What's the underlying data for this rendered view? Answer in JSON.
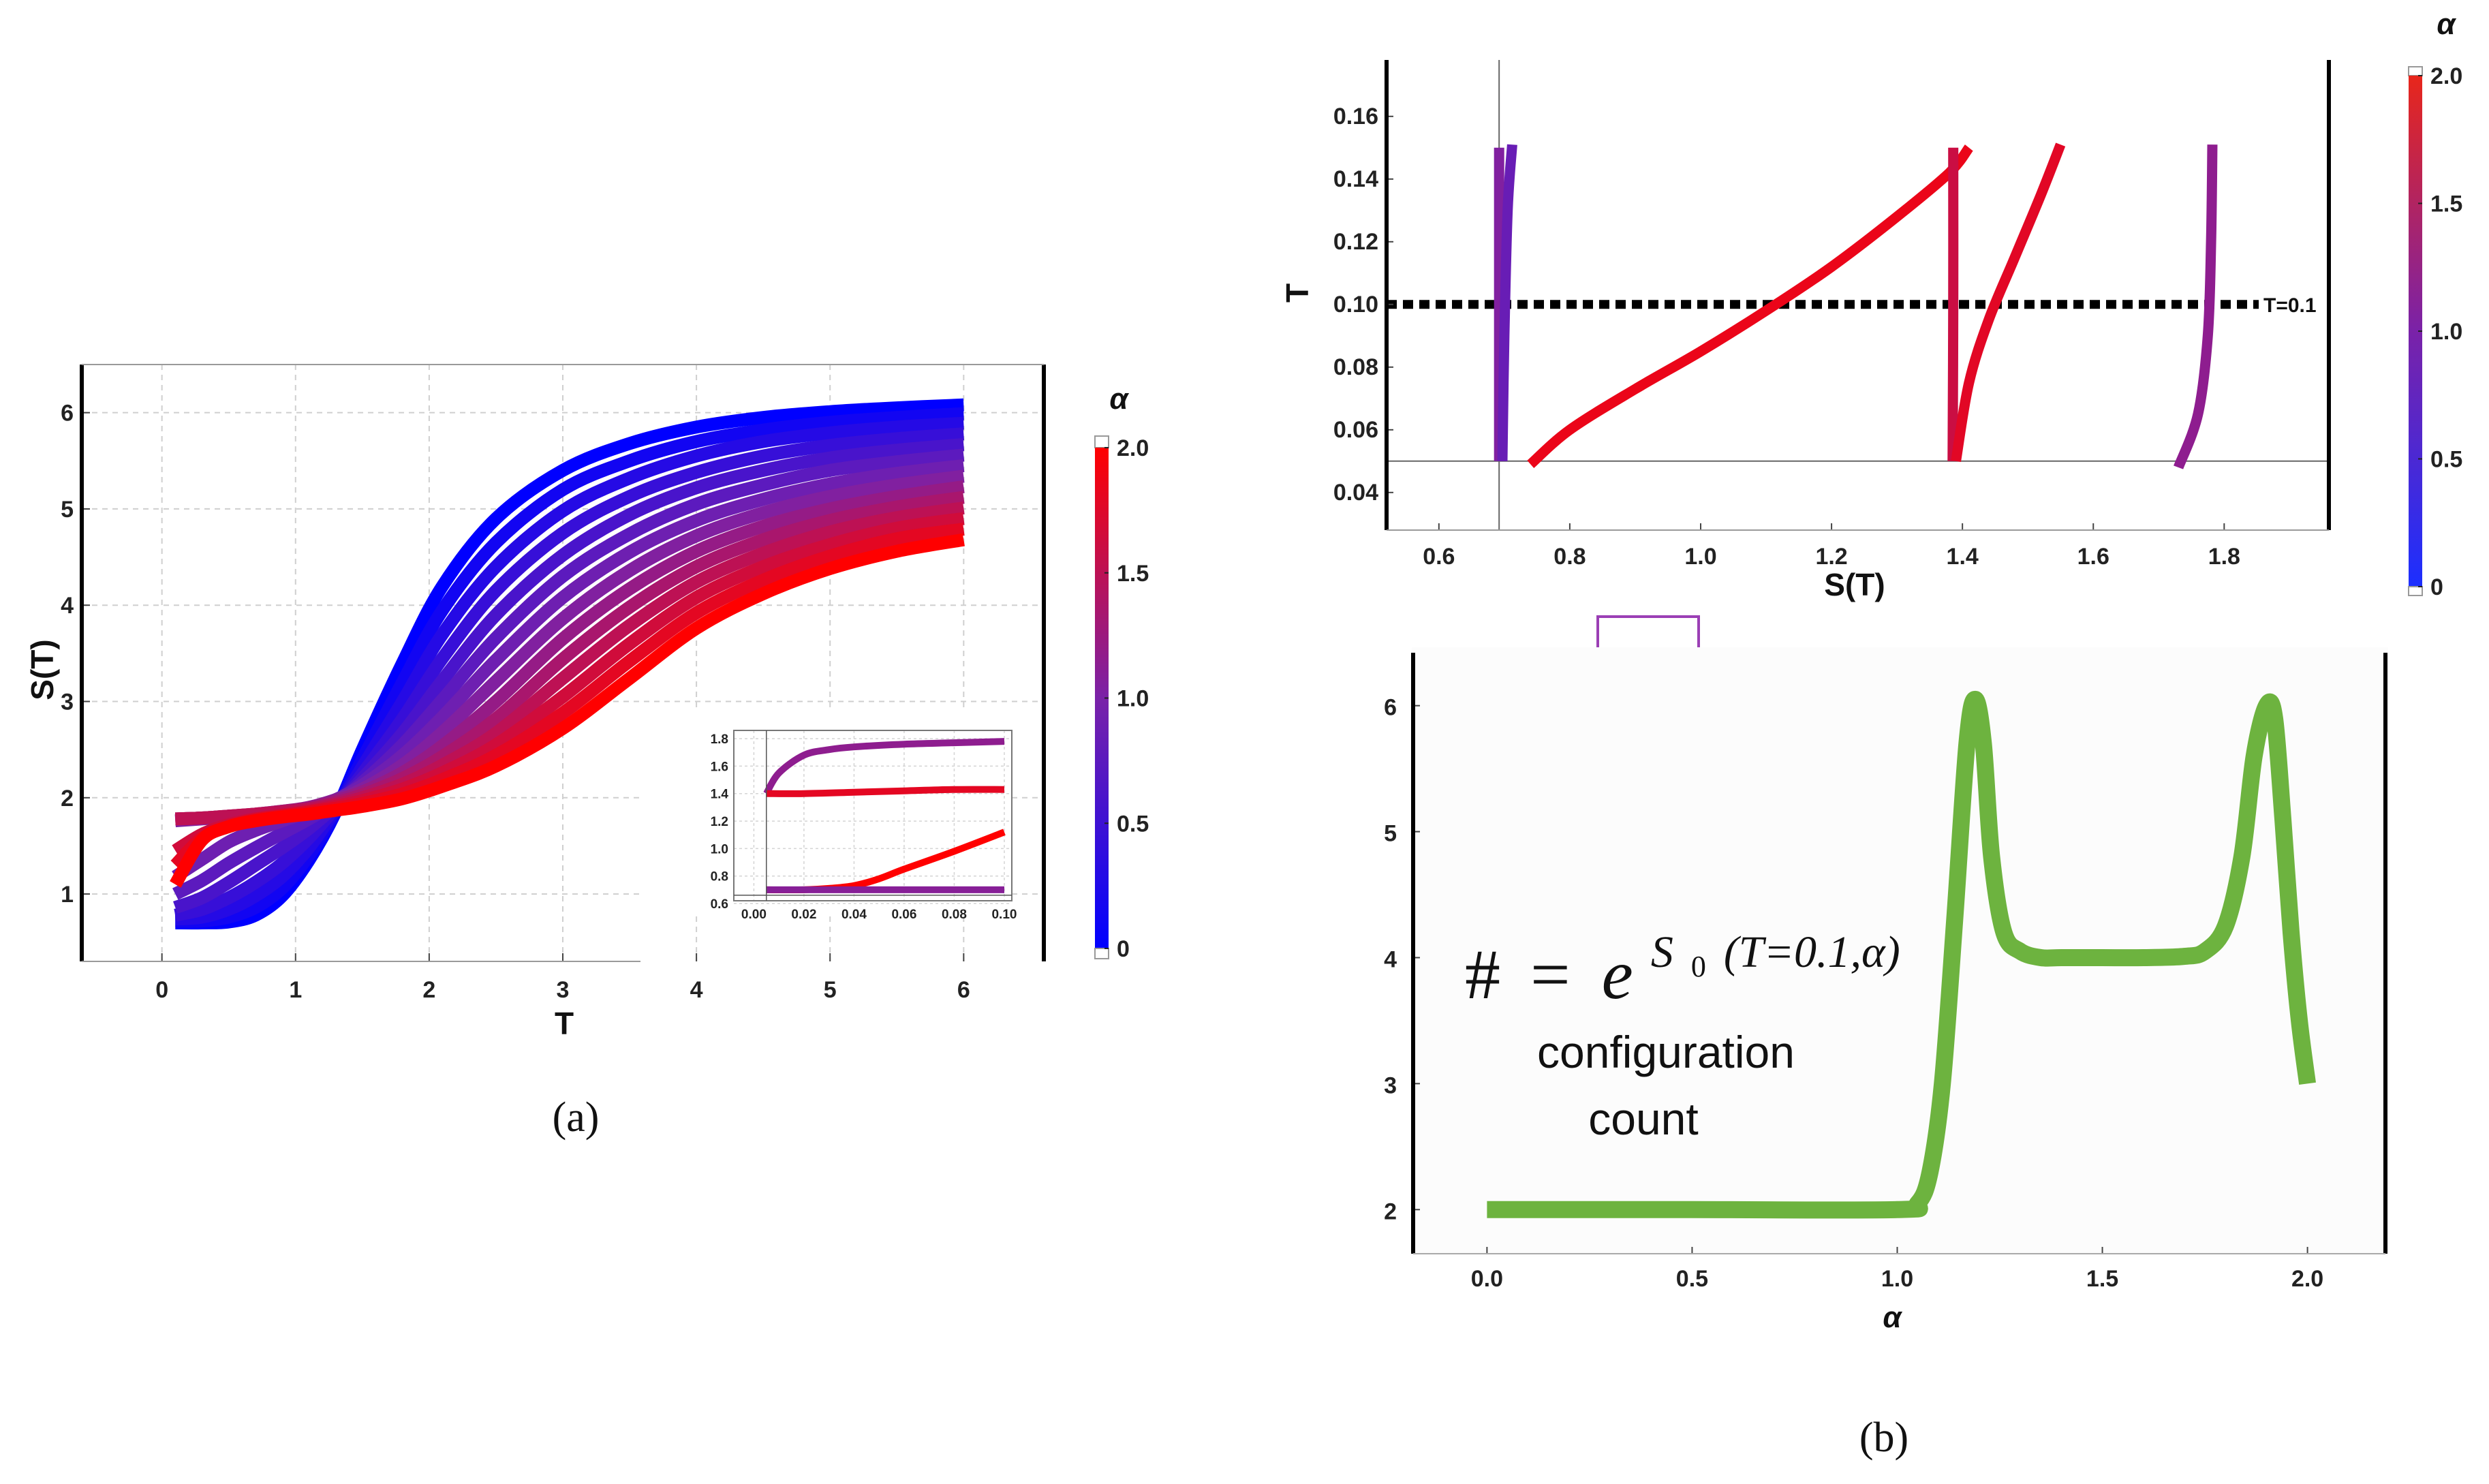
{
  "colors": {
    "alpha_low": "#0000ff",
    "alpha_mid": "#7a22a8",
    "alpha_high": "#ff0000",
    "count_line": "#6db33f",
    "arrow": "#9b3fb5",
    "dashed_line": "#000000"
  },
  "captions": {
    "a": "(a)",
    "b": "(b)"
  },
  "formula": {
    "lhs": "#",
    "eq": "=",
    "base": "e",
    "exponent": "S",
    "sub": "0",
    "args": "(T=0.1,α)"
  },
  "annotation": {
    "line1": "configuration",
    "line2": "count"
  },
  "chart_data": [
    {
      "id": "a-main",
      "type": "line",
      "title": "",
      "xlabel": "T",
      "ylabel": "S(T)",
      "xlim": [
        -0.6,
        6.6
      ],
      "ylim": [
        0.3,
        6.5
      ],
      "xticks": [
        0,
        1,
        2,
        3,
        4,
        5,
        6
      ],
      "yticks": [
        1,
        2,
        3,
        4,
        5,
        6
      ],
      "color_by": "α",
      "series": [
        {
          "name": "α=0.0",
          "alpha": 0.0,
          "x": [
            0.1,
            0.3,
            0.5,
            0.7,
            0.9,
            1.1,
            1.3,
            1.5,
            1.8,
            2.1,
            2.5,
            3.0,
            3.5,
            4.0,
            4.5,
            5.0,
            5.5,
            6.0
          ],
          "y": [
            0.7,
            0.7,
            0.71,
            0.78,
            0.98,
            1.35,
            1.85,
            2.5,
            3.4,
            4.2,
            4.9,
            5.4,
            5.68,
            5.85,
            5.95,
            6.01,
            6.05,
            6.08
          ]
        },
        {
          "name": "α=0.15",
          "alpha": 0.15,
          "x": [
            0.1,
            0.3,
            0.5,
            0.7,
            0.9,
            1.1,
            1.3,
            1.5,
            1.8,
            2.1,
            2.5,
            3.0,
            3.5,
            4.0,
            4.5,
            5.0,
            5.5,
            6.0
          ],
          "y": [
            0.72,
            0.72,
            0.76,
            0.86,
            1.06,
            1.4,
            1.86,
            2.4,
            3.2,
            3.95,
            4.65,
            5.2,
            5.5,
            5.7,
            5.82,
            5.9,
            5.95,
            5.99
          ]
        },
        {
          "name": "α=0.3",
          "alpha": 0.3,
          "x": [
            0.1,
            0.3,
            0.5,
            0.7,
            0.9,
            1.1,
            1.3,
            1.5,
            1.8,
            2.1,
            2.5,
            3.0,
            3.5,
            4.0,
            4.5,
            5.0,
            5.5,
            6.0
          ],
          "y": [
            0.74,
            0.76,
            0.84,
            0.98,
            1.18,
            1.48,
            1.88,
            2.32,
            3.0,
            3.7,
            4.4,
            4.98,
            5.32,
            5.55,
            5.7,
            5.79,
            5.85,
            5.89
          ]
        },
        {
          "name": "α=0.45",
          "alpha": 0.45,
          "x": [
            0.1,
            0.3,
            0.5,
            0.7,
            0.9,
            1.1,
            1.3,
            1.5,
            1.8,
            2.1,
            2.5,
            3.0,
            3.5,
            4.0,
            4.5,
            5.0,
            5.5,
            6.0
          ],
          "y": [
            0.78,
            0.84,
            0.96,
            1.12,
            1.32,
            1.58,
            1.9,
            2.25,
            2.82,
            3.45,
            4.15,
            4.75,
            5.13,
            5.38,
            5.55,
            5.66,
            5.73,
            5.78
          ]
        },
        {
          "name": "α=0.6",
          "alpha": 0.6,
          "x": [
            0.1,
            0.3,
            0.5,
            0.7,
            0.9,
            1.1,
            1.3,
            1.5,
            1.8,
            2.1,
            2.5,
            3.0,
            3.5,
            4.0,
            4.5,
            5.0,
            5.5,
            6.0
          ],
          "y": [
            0.86,
            0.96,
            1.12,
            1.3,
            1.48,
            1.68,
            1.92,
            2.2,
            2.67,
            3.22,
            3.9,
            4.52,
            4.94,
            5.22,
            5.4,
            5.53,
            5.61,
            5.67
          ]
        },
        {
          "name": "α=0.75",
          "alpha": 0.75,
          "x": [
            0.1,
            0.3,
            0.5,
            0.7,
            0.9,
            1.1,
            1.3,
            1.5,
            1.8,
            2.1,
            2.5,
            3.0,
            3.5,
            4.0,
            4.5,
            5.0,
            5.5,
            6.0
          ],
          "y": [
            1.0,
            1.14,
            1.32,
            1.48,
            1.63,
            1.78,
            1.95,
            2.16,
            2.55,
            3.02,
            3.66,
            4.3,
            4.74,
            5.05,
            5.25,
            5.4,
            5.49,
            5.56
          ]
        },
        {
          "name": "α=0.9",
          "alpha": 0.9,
          "x": [
            0.1,
            0.3,
            0.5,
            0.7,
            0.9,
            1.1,
            1.3,
            1.5,
            1.8,
            2.1,
            2.5,
            3.0,
            3.5,
            4.0,
            4.5,
            5.0,
            5.5,
            6.0
          ],
          "y": [
            1.18,
            1.36,
            1.54,
            1.66,
            1.76,
            1.86,
            1.98,
            2.13,
            2.44,
            2.84,
            3.43,
            4.08,
            4.55,
            4.88,
            5.1,
            5.26,
            5.37,
            5.45
          ]
        },
        {
          "name": "α=1.05",
          "alpha": 1.05,
          "x": [
            0.1,
            0.3,
            0.5,
            0.7,
            0.9,
            1.1,
            1.3,
            1.5,
            1.8,
            2.1,
            2.5,
            3.0,
            3.5,
            4.0,
            4.5,
            5.0,
            5.5,
            6.0
          ],
          "y": [
            1.76,
            1.78,
            1.8,
            1.82,
            1.85,
            1.9,
            1.98,
            2.09,
            2.34,
            2.68,
            3.21,
            3.86,
            4.36,
            4.72,
            4.96,
            5.13,
            5.25,
            5.34
          ]
        },
        {
          "name": "α=1.2",
          "alpha": 1.2,
          "x": [
            0.1,
            0.3,
            0.5,
            0.7,
            0.9,
            1.1,
            1.3,
            1.5,
            1.8,
            2.1,
            2.5,
            3.0,
            3.5,
            4.0,
            4.5,
            5.0,
            5.5,
            6.0
          ],
          "y": [
            1.78,
            1.79,
            1.81,
            1.83,
            1.86,
            1.9,
            1.97,
            2.06,
            2.26,
            2.54,
            3.0,
            3.65,
            4.17,
            4.56,
            4.82,
            5.0,
            5.13,
            5.23
          ]
        },
        {
          "name": "α=1.35",
          "alpha": 1.35,
          "x": [
            0.1,
            0.3,
            0.5,
            0.7,
            0.9,
            1.1,
            1.3,
            1.5,
            1.8,
            2.1,
            2.5,
            3.0,
            3.5,
            4.0,
            4.5,
            5.0,
            5.5,
            6.0
          ],
          "y": [
            1.78,
            1.79,
            1.81,
            1.83,
            1.86,
            1.89,
            1.95,
            2.03,
            2.2,
            2.43,
            2.82,
            3.44,
            3.98,
            4.4,
            4.68,
            4.88,
            5.02,
            5.12
          ]
        },
        {
          "name": "α=1.5",
          "alpha": 1.5,
          "x": [
            0.1,
            0.3,
            0.5,
            0.7,
            0.9,
            1.1,
            1.3,
            1.5,
            1.8,
            2.1,
            2.5,
            3.0,
            3.5,
            4.0,
            4.5,
            5.0,
            5.5,
            6.0
          ],
          "y": [
            1.78,
            1.79,
            1.81,
            1.83,
            1.85,
            1.88,
            1.93,
            2.0,
            2.14,
            2.34,
            2.67,
            3.24,
            3.79,
            4.24,
            4.54,
            4.76,
            4.91,
            5.01
          ]
        },
        {
          "name": "α=1.65",
          "alpha": 1.65,
          "x": [
            0.1,
            0.3,
            0.5,
            0.7,
            0.9,
            1.1,
            1.3,
            1.5,
            1.8,
            2.1,
            2.5,
            3.0,
            3.5,
            4.0,
            4.5,
            5.0,
            5.5,
            6.0
          ],
          "y": [
            1.45,
            1.62,
            1.72,
            1.78,
            1.82,
            1.86,
            1.91,
            1.97,
            2.09,
            2.26,
            2.55,
            3.05,
            3.6,
            4.08,
            4.4,
            4.63,
            4.8,
            4.9
          ]
        },
        {
          "name": "α=1.8",
          "alpha": 1.8,
          "x": [
            0.1,
            0.3,
            0.5,
            0.7,
            0.9,
            1.1,
            1.3,
            1.5,
            1.8,
            2.1,
            2.5,
            3.0,
            3.5,
            4.0,
            4.5,
            5.0,
            5.5,
            6.0
          ],
          "y": [
            1.3,
            1.58,
            1.7,
            1.77,
            1.81,
            1.85,
            1.89,
            1.94,
            2.04,
            2.19,
            2.44,
            2.88,
            3.42,
            3.92,
            4.26,
            4.51,
            4.69,
            4.79
          ]
        },
        {
          "name": "α=2.0",
          "alpha": 2.0,
          "x": [
            0.1,
            0.3,
            0.5,
            0.7,
            0.9,
            1.1,
            1.3,
            1.5,
            1.8,
            2.1,
            2.5,
            3.0,
            3.5,
            4.0,
            4.5,
            5.0,
            5.5,
            6.0
          ],
          "y": [
            1.1,
            1.56,
            1.7,
            1.76,
            1.8,
            1.83,
            1.87,
            1.91,
            1.99,
            2.12,
            2.33,
            2.72,
            3.24,
            3.76,
            4.12,
            4.38,
            4.56,
            4.68
          ]
        }
      ]
    },
    {
      "id": "a-inset",
      "type": "line",
      "title": "",
      "xlabel": "",
      "ylabel": "",
      "xlim": [
        -0.008,
        0.103
      ],
      "ylim": [
        0.62,
        1.86
      ],
      "xticks": [
        "0.00",
        "0.02",
        "0.04",
        "0.06",
        "0.08",
        "0.10"
      ],
      "yticks": [
        "0.6",
        "0.8",
        "1.0",
        "1.2",
        "1.4",
        "1.6",
        "1.8"
      ],
      "series": [
        {
          "name": "upper",
          "alpha": 1.15,
          "x": [
            0.005,
            0.01,
            0.02,
            0.03,
            0.04,
            0.06,
            0.08,
            0.1
          ],
          "y": [
            1.4,
            1.55,
            1.68,
            1.72,
            1.74,
            1.76,
            1.77,
            1.78
          ]
        },
        {
          "name": "middle",
          "alpha": 1.8,
          "x": [
            0.005,
            0.02,
            0.04,
            0.06,
            0.08,
            0.1
          ],
          "y": [
            1.4,
            1.4,
            1.41,
            1.42,
            1.43,
            1.43
          ]
        },
        {
          "name": "lower-rising",
          "alpha": 2.0,
          "x": [
            0.005,
            0.02,
            0.03,
            0.04,
            0.05,
            0.06,
            0.08,
            0.1
          ],
          "y": [
            0.7,
            0.7,
            0.71,
            0.73,
            0.78,
            0.85,
            0.98,
            1.12
          ]
        },
        {
          "name": "lower-flat",
          "alpha": 1.1,
          "x": [
            0.005,
            0.02,
            0.04,
            0.06,
            0.08,
            0.1
          ],
          "y": [
            0.7,
            0.7,
            0.7,
            0.7,
            0.7,
            0.7
          ]
        }
      ]
    },
    {
      "id": "b-top",
      "type": "line",
      "title": "",
      "xlabel": "S(T)",
      "ylabel": "T",
      "xlim": [
        0.52,
        1.96
      ],
      "ylim": [
        0.028,
        0.178
      ],
      "xticks": [
        "0.6",
        "0.8",
        "1.0",
        "1.2",
        "1.4",
        "1.6",
        "1.8"
      ],
      "yticks": [
        "0.04",
        "0.06",
        "0.08",
        "0.10",
        "0.12",
        "0.14",
        "0.16"
      ],
      "reference_line": {
        "T": 0.1,
        "label": "T=0.1"
      },
      "series": [
        {
          "name": "vertical-0.69",
          "alpha": 1.05,
          "x": [
            0.692,
            0.692
          ],
          "y": [
            0.05,
            0.15
          ]
        },
        {
          "name": "near-0.69",
          "alpha": 0.85,
          "x": [
            0.697,
            0.7,
            0.705,
            0.712
          ],
          "y": [
            0.05,
            0.09,
            0.13,
            0.151
          ]
        },
        {
          "name": "rising",
          "alpha": 1.85,
          "x": [
            0.74,
            0.8,
            0.9,
            1.0,
            1.1,
            1.2,
            1.3,
            1.38,
            1.41
          ],
          "y": [
            0.049,
            0.06,
            0.073,
            0.085,
            0.098,
            0.112,
            0.128,
            0.142,
            0.15
          ]
        },
        {
          "name": "vertical-1.386",
          "alpha": 1.6,
          "x": [
            1.385,
            1.386,
            1.386
          ],
          "y": [
            0.05,
            0.1,
            0.15
          ]
        },
        {
          "name": "branch",
          "alpha": 1.78,
          "x": [
            1.39,
            1.41,
            1.44,
            1.48,
            1.52,
            1.55
          ],
          "y": [
            0.05,
            0.075,
            0.095,
            0.115,
            0.135,
            0.151
          ]
        },
        {
          "name": "right",
          "alpha": 1.15,
          "x": [
            1.73,
            1.76,
            1.775,
            1.78,
            1.782
          ],
          "y": [
            0.048,
            0.065,
            0.09,
            0.12,
            0.151
          ]
        }
      ],
      "colorbar": {
        "label": "α",
        "ticks": [
          "0",
          "0.5",
          "1.0",
          "1.5",
          "2.0"
        ],
        "range": [
          0,
          2
        ]
      }
    },
    {
      "id": "b-bottom",
      "type": "line",
      "title": "",
      "xlabel": "α",
      "ylabel": "",
      "xlim": [
        -0.18,
        2.19
      ],
      "ylim": [
        1.65,
        6.42
      ],
      "xticks": [
        "0.0",
        "0.5",
        "1.0",
        "1.5",
        "2.0"
      ],
      "yticks": [
        "2",
        "3",
        "4",
        "5",
        "6"
      ],
      "series": [
        {
          "name": "configuration count",
          "x": [
            0.0,
            0.5,
            1.0,
            1.05,
            1.08,
            1.11,
            1.14,
            1.17,
            1.19,
            1.21,
            1.23,
            1.26,
            1.3,
            1.35,
            1.4,
            1.5,
            1.6,
            1.7,
            1.75,
            1.8,
            1.84,
            1.87,
            1.9,
            1.92,
            1.94,
            1.96,
            1.98,
            2.0
          ],
          "y": [
            2.0,
            2.0,
            2.0,
            2.05,
            2.3,
            3.0,
            4.3,
            5.7,
            6.05,
            5.7,
            4.8,
            4.2,
            4.05,
            4.0,
            4.0,
            4.0,
            4.0,
            4.01,
            4.05,
            4.25,
            4.8,
            5.6,
            6.0,
            5.9,
            5.1,
            4.2,
            3.5,
            3.0
          ]
        }
      ]
    }
  ],
  "colorbar_a": {
    "label": "α",
    "ticks": [
      "0",
      "0.5",
      "1.0",
      "1.5",
      "2.0"
    ],
    "range": [
      0,
      2
    ]
  }
}
